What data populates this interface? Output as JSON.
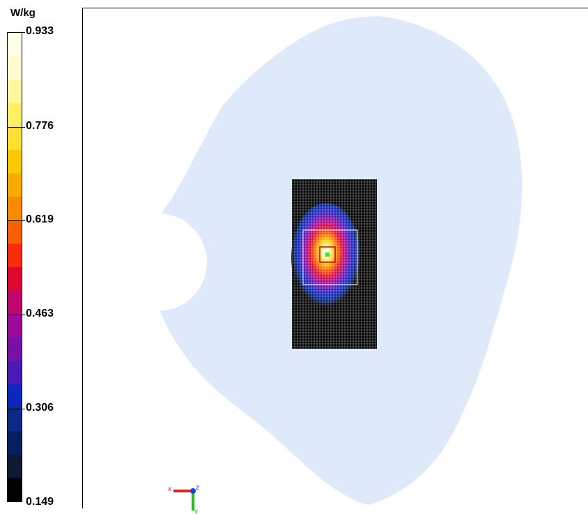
{
  "colorbar": {
    "unit": "W/kg",
    "ticks": [
      "0.933",
      "0.776",
      "0.619",
      "0.463",
      "0.306",
      "0.149"
    ],
    "min": 0.149,
    "max": 0.933,
    "bands": [
      "#000000",
      "#0c1a33",
      "#042060",
      "#0a2a8a",
      "#0a28c0",
      "#4a1ab8",
      "#7a10a8",
      "#a0089a",
      "#c0066e",
      "#e0082e",
      "#f82a0a",
      "#f86000",
      "#fb8a00",
      "#fbaa00",
      "#fcc800",
      "#fde030",
      "#fef060",
      "#fff6a0",
      "#fffbd0",
      "#ffffe6"
    ]
  },
  "scene": {
    "phantom_color": "#deeafa",
    "grid_bg": "#000000",
    "grid_line": "#ffffff"
  },
  "axes": {
    "x_label": "x",
    "y_label": "y",
    "z_label": "z"
  }
}
